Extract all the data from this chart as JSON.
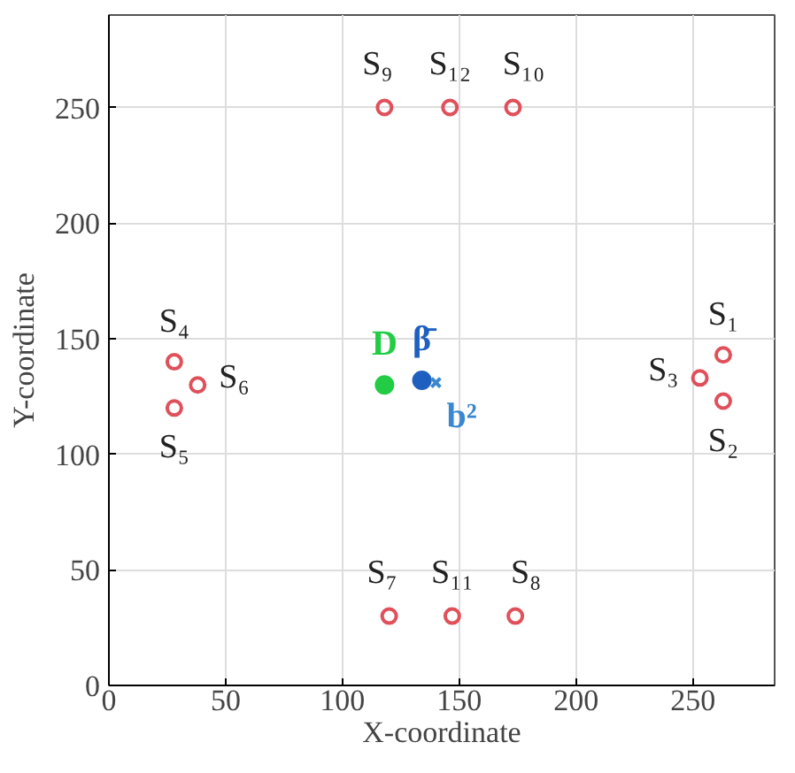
{
  "chart_data": {
    "type": "scatter",
    "xlabel": "X-coordinate",
    "ylabel": "Y-coordinate",
    "xlim": [
      0,
      285
    ],
    "ylim": [
      0,
      290
    ],
    "xticks": [
      0,
      50,
      100,
      150,
      200,
      250
    ],
    "yticks": [
      0,
      50,
      100,
      150,
      200,
      250
    ],
    "grid": true,
    "series": [
      {
        "color": "#e0505a",
        "marker": "circle",
        "x": [
          263,
          263,
          253,
          28,
          28,
          38,
          120,
          174,
          118,
          173,
          147,
          146
        ],
        "values": [
          143,
          123,
          133,
          140,
          120,
          130,
          30,
          30,
          250,
          250,
          30,
          250
        ]
      },
      {
        "name": "D",
        "color": "#22cc44",
        "marker": "circle",
        "x": [
          118
        ],
        "values": [
          130
        ]
      },
      {
        "name": "β̄",
        "color": "#1f5fbf",
        "marker": "circle",
        "x": [
          134
        ],
        "values": [
          132
        ]
      },
      {
        "name": "b²",
        "color": "#3a88d0",
        "marker": "cross",
        "x": [
          140
        ],
        "values": [
          131
        ]
      }
    ],
    "annotations": [
      {
        "text": "S₁",
        "x": 263,
        "y": 143
      },
      {
        "text": "S₂",
        "x": 263,
        "y": 123
      },
      {
        "text": "S₃",
        "x": 253,
        "y": 133
      },
      {
        "text": "S₄",
        "x": 28,
        "y": 140
      },
      {
        "text": "S₅",
        "x": 28,
        "y": 120
      },
      {
        "text": "S₆",
        "x": 38,
        "y": 130
      },
      {
        "text": "S₇",
        "x": 120,
        "y": 30
      },
      {
        "text": "S₈",
        "x": 174,
        "y": 30
      },
      {
        "text": "S₉",
        "x": 118,
        "y": 250
      },
      {
        "text": "S₁₀",
        "x": 173,
        "y": 250
      },
      {
        "text": "S₁₁",
        "x": 147,
        "y": 30
      },
      {
        "text": "S₁₂",
        "x": 146,
        "y": 250
      }
    ]
  }
}
